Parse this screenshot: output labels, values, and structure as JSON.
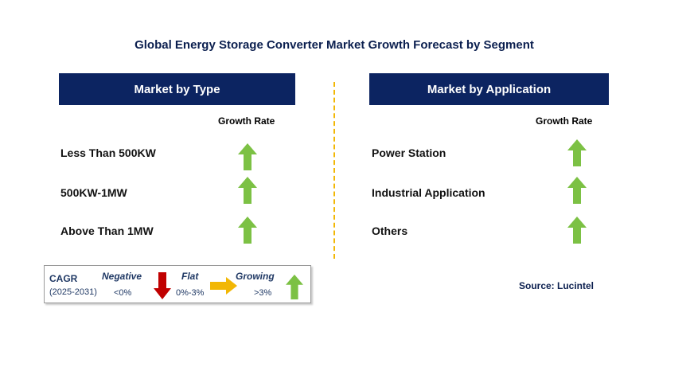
{
  "title": "Global Energy Storage Converter Market Growth Forecast by Segment",
  "left_panel": {
    "header": "Market by Type",
    "growth_rate_label": "Growth Rate",
    "rows": [
      {
        "label": "Less Than 500KW",
        "trend": "growing"
      },
      {
        "label": "500KW-1MW",
        "trend": "growing"
      },
      {
        "label": "Above Than 1MW",
        "trend": "growing"
      }
    ]
  },
  "right_panel": {
    "header": "Market by Application",
    "growth_rate_label": "Growth Rate",
    "rows": [
      {
        "label": "Power Station",
        "trend": "growing"
      },
      {
        "label": "Industrial Application",
        "trend": "growing"
      },
      {
        "label": "Others",
        "trend": "growing"
      }
    ]
  },
  "legend": {
    "cagr_label": "CAGR",
    "period": "(2025-2031)",
    "negative_label": "Negative",
    "negative_range": "<0%",
    "flat_label": "Flat",
    "flat_range": "0%-3%",
    "growing_label": "Growing",
    "growing_range": ">3%"
  },
  "source": "Source: Lucintel",
  "colors": {
    "header_bg": "#0c2461",
    "growing_arrow": "#7cc144",
    "negative_arrow": "#c00000",
    "flat_arrow": "#f2b705",
    "divider": "#f2b705"
  },
  "icons": {
    "growing": "up-arrow-icon",
    "negative": "down-arrow-icon",
    "flat": "right-arrow-icon"
  }
}
